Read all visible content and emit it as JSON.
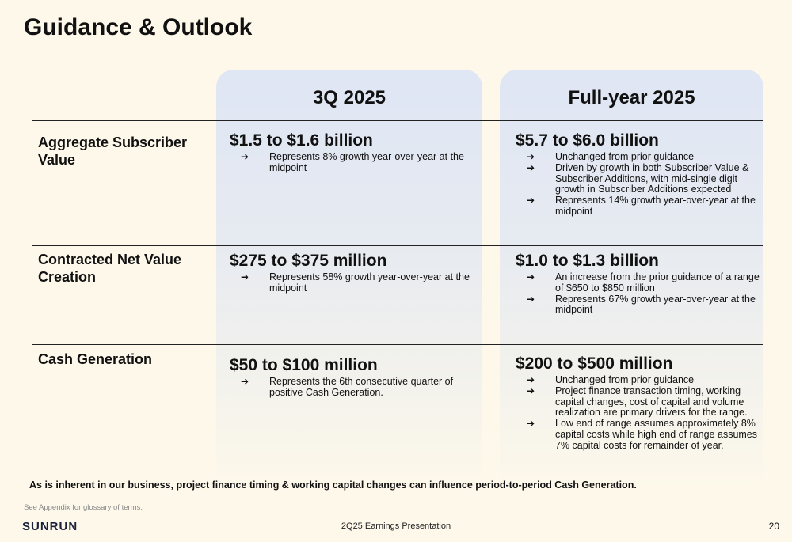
{
  "title": "Guidance & Outlook",
  "columns": [
    "3Q 2025",
    "Full-year 2025"
  ],
  "rows": [
    {
      "label": "Aggregate Subscriber Value",
      "q3": {
        "value": "$1.5 to $1.6 billion",
        "bullets": [
          "Represents 8% growth year-over-year at the midpoint"
        ]
      },
      "fy": {
        "value": "$5.7 to $6.0 billion",
        "bullets": [
          "Unchanged from prior guidance",
          "Driven by growth in both Subscriber Value & Subscriber Additions, with mid-single digit growth in Subscriber Additions expected",
          "Represents 14% growth year-over-year at the midpoint"
        ]
      }
    },
    {
      "label": "Contracted Net Value Creation",
      "q3": {
        "value": "$275 to $375 million",
        "bullets": [
          "Represents 58% growth year-over-year at the midpoint"
        ]
      },
      "fy": {
        "value": "$1.0 to $1.3 billion",
        "bullets": [
          "An increase from the prior guidance of a range of $650 to $850 million",
          "Represents 67% growth year-over-year at the midpoint"
        ]
      }
    },
    {
      "label": "Cash Generation",
      "q3": {
        "value": "$50 to $100 million",
        "bullets": [
          "Represents the 6th consecutive quarter of positive Cash Generation."
        ]
      },
      "fy": {
        "value": "$200 to $500 million",
        "bullets": [
          "Unchanged from prior guidance",
          "Project finance transaction timing, working capital changes, cost of capital and volume realization are primary drivers for the range.",
          "Low end of range assumes approximately 8% capital costs while high end of range assumes 7% capital costs for remainder of year."
        ]
      }
    }
  ],
  "arrow": "➔",
  "note": "As is inherent in our business, project finance timing & working capital changes can influence period-to-period Cash Generation.",
  "appendix_note": "See Appendix for glossary of terms.",
  "logo_text": "SUNRUN",
  "footer_center": "2Q25 Earnings Presentation",
  "page_number": "20",
  "colors": {
    "background": "#fdf8ea",
    "column_tint": "#dfe6f4"
  }
}
